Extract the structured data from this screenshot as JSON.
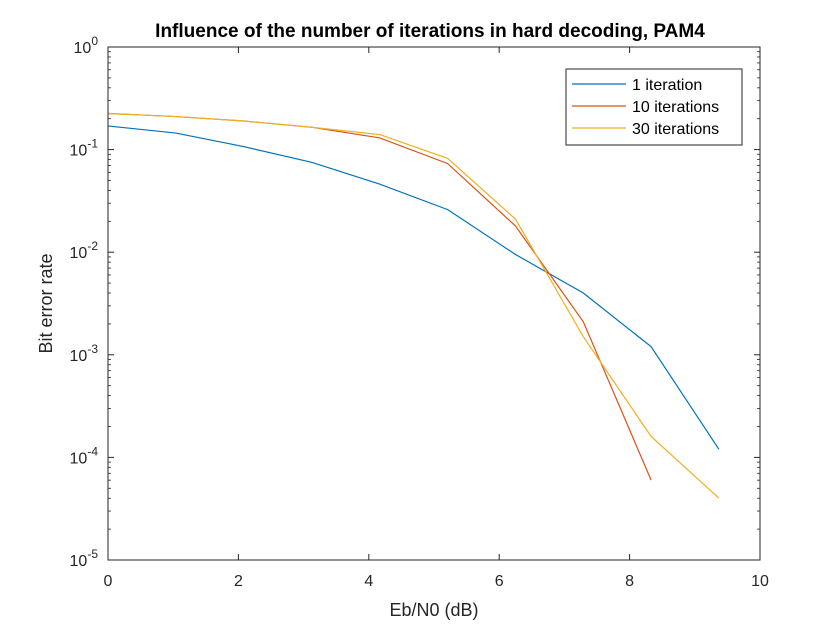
{
  "chart_data": {
    "type": "line",
    "title": "Influence of the number of iterations in hard decoding, PAM4",
    "xlabel": "Eb/N0 (dB)",
    "ylabel": "Bit error rate",
    "xlim": [
      0,
      10
    ],
    "ylim": [
      1e-05,
      1
    ],
    "yscale": "log",
    "xticks": [
      "0",
      "2",
      "4",
      "6",
      "8",
      "10"
    ],
    "yticks": [
      {
        "base": "10",
        "exp": "-5"
      },
      {
        "base": "10",
        "exp": "-4"
      },
      {
        "base": "10",
        "exp": "-3"
      },
      {
        "base": "10",
        "exp": "-2"
      },
      {
        "base": "10",
        "exp": "-1"
      },
      {
        "base": "10",
        "exp": "0"
      }
    ],
    "grid": false,
    "legend_position": "top-right",
    "series": [
      {
        "name": "1 iteration",
        "color": "#0072BD",
        "x": [
          0,
          1.04,
          2.08,
          3.13,
          4.17,
          5.21,
          6.25,
          7.29,
          8.33,
          9.37
        ],
        "y": [
          0.17,
          0.145,
          0.107,
          0.075,
          0.046,
          0.026,
          0.0095,
          0.004,
          0.0012,
          0.00012
        ]
      },
      {
        "name": "10 iterations",
        "color": "#D95319",
        "x": [
          0,
          1.04,
          2.08,
          3.13,
          4.17,
          5.21,
          6.25,
          7.29,
          8.33
        ],
        "y": [
          0.225,
          0.21,
          0.19,
          0.165,
          0.13,
          0.073,
          0.018,
          0.0021,
          6e-05
        ]
      },
      {
        "name": "30 iterations",
        "color": "#EDB120",
        "x": [
          0,
          1.04,
          2.08,
          3.13,
          4.17,
          5.21,
          6.25,
          7.29,
          8.33,
          9.37
        ],
        "y": [
          0.225,
          0.21,
          0.19,
          0.165,
          0.14,
          0.082,
          0.021,
          0.0015,
          0.00016,
          4e-05
        ]
      }
    ]
  }
}
